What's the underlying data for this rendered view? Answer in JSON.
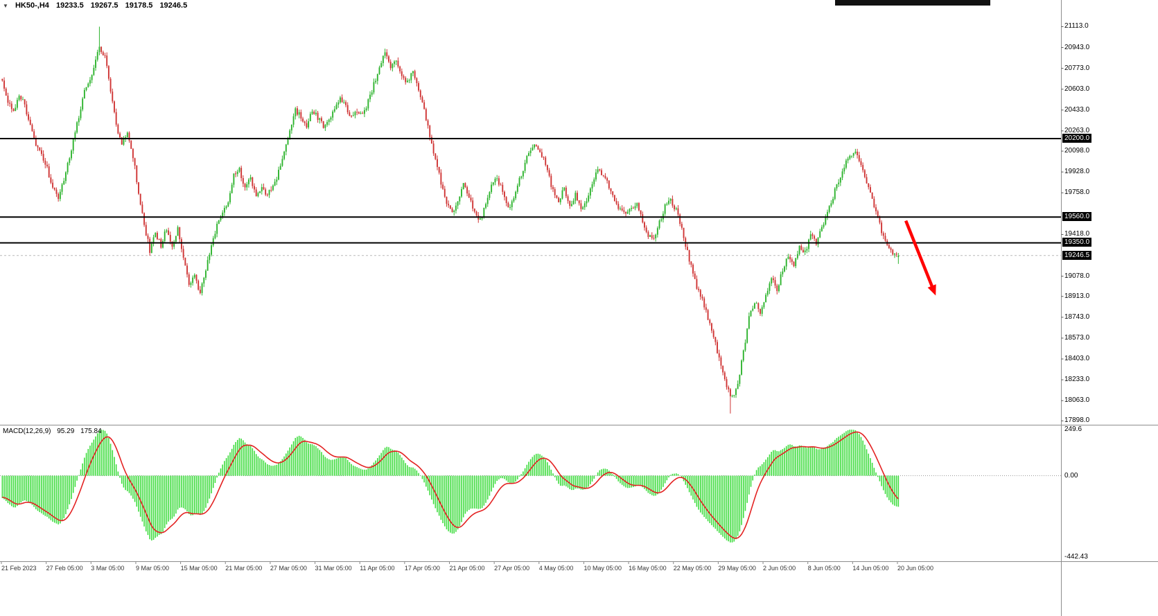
{
  "header": {
    "symbol_timeframe": "HK50-,H4",
    "open": "19233.5",
    "high": "19267.5",
    "low": "19178.5",
    "close": "19246.5"
  },
  "chart_data": {
    "type": "candlestick",
    "symbol": "HK50-",
    "timeframe": "H4",
    "price_axis": {
      "min": 17872,
      "max": 21240,
      "tick_labels": [
        "21113.0",
        "20943.0",
        "20773.0",
        "20603.0",
        "20433.0",
        "20263.0",
        "20098.0",
        "19928.0",
        "19758.0",
        "19418.0",
        "19078.0",
        "18913.0",
        "18743.0",
        "18573.0",
        "18403.0",
        "18233.0",
        "18063.0",
        "17898.0"
      ]
    },
    "levels": [
      {
        "price": 20200.0,
        "label": "20200.0"
      },
      {
        "price": 19560.0,
        "label": "19560.0"
      },
      {
        "price": 19350.0,
        "label": "19350.0"
      }
    ],
    "current_price": {
      "value": 19246.5,
      "label": "19246.5"
    },
    "time_labels": [
      "21 Feb 2023",
      "27 Feb 05:00",
      "3 Mar 05:00",
      "9 Mar 05:00",
      "15 Mar 05:00",
      "21 Mar 05:00",
      "27 Mar 05:00",
      "31 Mar 05:00",
      "11 Apr 05:00",
      "17 Apr 05:00",
      "21 Apr 05:00",
      "27 Apr 05:00",
      "4 May 05:00",
      "10 May 05:00",
      "16 May 05:00",
      "22 May 05:00",
      "29 May 05:00",
      "2 Jun 05:00",
      "8 Jun 05:00",
      "14 Jun 05:00",
      "20 Jun 05:00"
    ],
    "candles_per_label": 24,
    "last_candle": {
      "open": 19233.5,
      "high": 19267.5,
      "low": 19178.5,
      "close": 19246.5
    },
    "price_path": [
      [
        0,
        20680
      ],
      [
        3,
        20500
      ],
      [
        6,
        20420
      ],
      [
        9,
        20560
      ],
      [
        12,
        20480
      ],
      [
        15,
        20300
      ],
      [
        18,
        20160
      ],
      [
        21,
        20060
      ],
      [
        24,
        19960
      ],
      [
        27,
        19790
      ],
      [
        30,
        19730
      ],
      [
        33,
        19860
      ],
      [
        36,
        20040
      ],
      [
        40,
        20320
      ],
      [
        44,
        20580
      ],
      [
        48,
        20720
      ],
      [
        52,
        20960
      ],
      [
        55,
        20860
      ],
      [
        58,
        20600
      ],
      [
        61,
        20300
      ],
      [
        64,
        20160
      ],
      [
        67,
        20270
      ],
      [
        70,
        20060
      ],
      [
        73,
        19760
      ],
      [
        76,
        19500
      ],
      [
        79,
        19290
      ],
      [
        82,
        19420
      ],
      [
        85,
        19330
      ],
      [
        88,
        19470
      ],
      [
        91,
        19330
      ],
      [
        94,
        19460
      ],
      [
        97,
        19210
      ],
      [
        100,
        19010
      ],
      [
        103,
        19090
      ],
      [
        106,
        18930
      ],
      [
        109,
        19130
      ],
      [
        112,
        19340
      ],
      [
        115,
        19490
      ],
      [
        118,
        19580
      ],
      [
        121,
        19700
      ],
      [
        124,
        19900
      ],
      [
        127,
        19950
      ],
      [
        130,
        19790
      ],
      [
        133,
        19870
      ],
      [
        136,
        19730
      ],
      [
        139,
        19810
      ],
      [
        142,
        19740
      ],
      [
        145,
        19800
      ],
      [
        148,
        19930
      ],
      [
        151,
        20080
      ],
      [
        154,
        20280
      ],
      [
        157,
        20430
      ],
      [
        160,
        20380
      ],
      [
        163,
        20310
      ],
      [
        166,
        20430
      ],
      [
        169,
        20370
      ],
      [
        172,
        20300
      ],
      [
        175,
        20360
      ],
      [
        178,
        20450
      ],
      [
        181,
        20530
      ],
      [
        184,
        20460
      ],
      [
        187,
        20370
      ],
      [
        190,
        20430
      ],
      [
        193,
        20390
      ],
      [
        196,
        20500
      ],
      [
        199,
        20640
      ],
      [
        202,
        20780
      ],
      [
        205,
        20890
      ],
      [
        208,
        20770
      ],
      [
        211,
        20830
      ],
      [
        214,
        20690
      ],
      [
        217,
        20660
      ],
      [
        220,
        20760
      ],
      [
        223,
        20580
      ],
      [
        226,
        20430
      ],
      [
        229,
        20230
      ],
      [
        232,
        20030
      ],
      [
        235,
        19840
      ],
      [
        238,
        19690
      ],
      [
        241,
        19590
      ],
      [
        244,
        19700
      ],
      [
        247,
        19830
      ],
      [
        250,
        19730
      ],
      [
        253,
        19600
      ],
      [
        256,
        19530
      ],
      [
        259,
        19670
      ],
      [
        262,
        19820
      ],
      [
        265,
        19890
      ],
      [
        268,
        19760
      ],
      [
        271,
        19620
      ],
      [
        274,
        19710
      ],
      [
        277,
        19860
      ],
      [
        280,
        20000
      ],
      [
        283,
        20110
      ],
      [
        286,
        20150
      ],
      [
        289,
        20070
      ],
      [
        292,
        19930
      ],
      [
        295,
        19770
      ],
      [
        298,
        19690
      ],
      [
        301,
        19790
      ],
      [
        304,
        19660
      ],
      [
        307,
        19740
      ],
      [
        310,
        19610
      ],
      [
        313,
        19670
      ],
      [
        316,
        19840
      ],
      [
        319,
        19970
      ],
      [
        322,
        19890
      ],
      [
        325,
        19810
      ],
      [
        328,
        19700
      ],
      [
        331,
        19610
      ],
      [
        334,
        19570
      ],
      [
        337,
        19620
      ],
      [
        340,
        19680
      ],
      [
        343,
        19530
      ],
      [
        346,
        19420
      ],
      [
        349,
        19390
      ],
      [
        352,
        19520
      ],
      [
        355,
        19650
      ],
      [
        358,
        19700
      ],
      [
        361,
        19610
      ],
      [
        364,
        19470
      ],
      [
        367,
        19270
      ],
      [
        370,
        19090
      ],
      [
        373,
        18950
      ],
      [
        376,
        18840
      ],
      [
        379,
        18680
      ],
      [
        382,
        18520
      ],
      [
        385,
        18330
      ],
      [
        388,
        18180
      ],
      [
        391,
        18090
      ],
      [
        394,
        18200
      ],
      [
        397,
        18460
      ],
      [
        400,
        18730
      ],
      [
        403,
        18870
      ],
      [
        406,
        18790
      ],
      [
        409,
        18930
      ],
      [
        412,
        19060
      ],
      [
        415,
        18970
      ],
      [
        418,
        19130
      ],
      [
        421,
        19250
      ],
      [
        424,
        19170
      ],
      [
        427,
        19330
      ],
      [
        430,
        19270
      ],
      [
        433,
        19410
      ],
      [
        436,
        19340
      ],
      [
        439,
        19470
      ],
      [
        442,
        19610
      ],
      [
        445,
        19730
      ],
      [
        448,
        19860
      ],
      [
        451,
        19970
      ],
      [
        454,
        20070
      ],
      [
        457,
        20110
      ],
      [
        460,
        19970
      ],
      [
        463,
        19840
      ],
      [
        466,
        19700
      ],
      [
        469,
        19550
      ],
      [
        472,
        19400
      ],
      [
        475,
        19310
      ],
      [
        478,
        19240
      ],
      [
        480,
        19246.5
      ]
    ],
    "spikes": [
      [
        52,
        "h",
        21113.0
      ],
      [
        390,
        "l",
        17958.0
      ]
    ],
    "trend_arrow": {
      "from_index": 484,
      "from_price": 19530,
      "to_index": 500,
      "to_price": 18920,
      "color": "#ff0000"
    },
    "macd": {
      "label": "MACD(12,26,9)",
      "main_value": "95.29",
      "signal_value": "175.84",
      "fast": 12,
      "slow": 26,
      "signal": 9,
      "axis": {
        "max": 249.6,
        "min": -442.43,
        "tick_labels": [
          "249.6",
          "0.00",
          "-442.43"
        ]
      }
    },
    "colors": {
      "bull": "#2db32d",
      "bear": "#cf3434",
      "histogram": "#3fdc3f",
      "signal_line": "#e32222",
      "level_line": "#000000",
      "bid_line": "#b8b8b8",
      "axis_text": "#000000",
      "price_marker_bg": "#000000",
      "price_marker_text": "#ffffff",
      "arrow": "#ff0000"
    }
  }
}
